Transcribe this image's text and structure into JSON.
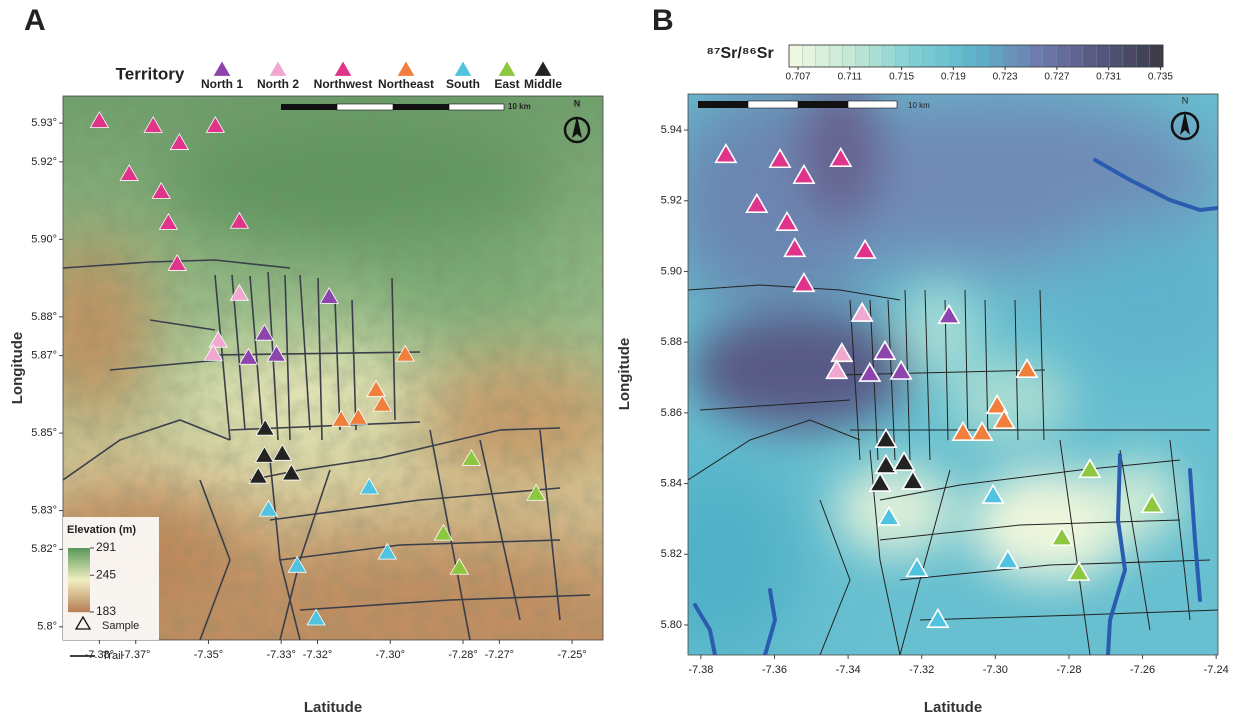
{
  "chart_data": [
    {
      "type": "scatter",
      "panel": "A",
      "legend_title": "Territory",
      "scale_bar": "10 km",
      "north": "N",
      "x_label": "Latitude",
      "y_label": "Longitude",
      "xlim": [
        -7.39,
        -7.2415
      ],
      "ylim": [
        5.7966,
        5.937
      ],
      "xticks": [
        {
          "value": -7.38,
          "label": "-7.38°"
        },
        {
          "value": -7.37,
          "label": "-7.37°"
        },
        {
          "value": -7.35,
          "label": "-7.35°"
        },
        {
          "value": -7.33,
          "label": "-7.33°"
        },
        {
          "value": -7.32,
          "label": "-7.32°"
        },
        {
          "value": -7.3,
          "label": "-7.30°"
        },
        {
          "value": -7.28,
          "label": "-7.28°"
        },
        {
          "value": -7.27,
          "label": "-7.27°"
        },
        {
          "value": -7.25,
          "label": "-7.25°"
        }
      ],
      "yticks": [
        {
          "value": 5.93,
          "label": "5.93°"
        },
        {
          "value": 5.92,
          "label": "5.92°"
        },
        {
          "value": 5.9,
          "label": "5.90°"
        },
        {
          "value": 5.88,
          "label": "5.88°"
        },
        {
          "value": 5.87,
          "label": "5.87°"
        },
        {
          "value": 5.85,
          "label": "5.85°"
        },
        {
          "value": 5.83,
          "label": "5.83°"
        },
        {
          "value": 5.82,
          "label": "5.82°"
        },
        {
          "value": 5.8,
          "label": "5.8°"
        }
      ],
      "elevation_scale": {
        "title": "Elevation (m)",
        "ticks": [
          291,
          245,
          183
        ],
        "colors": [
          "#5e9a5c",
          "#f2eec2",
          "#b8825a"
        ]
      },
      "legend_extra": [
        "Sample",
        "Trail"
      ],
      "series": [
        {
          "name": "North 1",
          "color": "#8e44ad",
          "x": [
            -7.3168,
            -7.3346,
            -7.339,
            -7.3313
          ],
          "y": [
            5.8851,
            5.8756,
            5.8694,
            5.8702
          ]
        },
        {
          "name": "North 2",
          "color": "#f0a8d0",
          "x": [
            -7.3415,
            -7.3473,
            -7.3487
          ],
          "y": [
            5.8859,
            5.8738,
            5.8704
          ]
        },
        {
          "name": "Northwest",
          "color": "#e0338a",
          "x": [
            -7.38,
            -7.3652,
            -7.358,
            -7.3481,
            -7.3718,
            -7.363,
            -7.361,
            -7.3415,
            -7.3586
          ],
          "y": [
            5.9305,
            5.9292,
            5.9248,
            5.9292,
            5.9168,
            5.9122,
            5.9042,
            5.9045,
            5.8936
          ]
        },
        {
          "name": "Northeast",
          "color": "#f07f3c",
          "x": [
            -7.2959,
            -7.3039,
            -7.3022,
            -7.3135,
            -7.3088
          ],
          "y": [
            5.8702,
            5.8611,
            5.8573,
            5.8534,
            5.8539
          ]
        },
        {
          "name": "South",
          "color": "#4fc3e0",
          "x": [
            -7.3335,
            -7.3058,
            -7.3008,
            -7.3256,
            -7.3204
          ],
          "y": [
            5.8302,
            5.8359,
            5.8191,
            5.8157,
            5.8021
          ]
        },
        {
          "name": "East",
          "color": "#8dc63f",
          "x": [
            -7.2777,
            -7.2599,
            -7.2854,
            -7.281
          ],
          "y": [
            5.8433,
            5.8343,
            5.824,
            5.8152
          ]
        },
        {
          "name": "Middle",
          "color": "#222222",
          "x": [
            -7.3344,
            -7.3346,
            -7.3297,
            -7.3363,
            -7.3272
          ],
          "y": [
            5.8511,
            5.8441,
            5.8446,
            5.8387,
            5.8395
          ]
        }
      ]
    },
    {
      "type": "scatter",
      "panel": "B",
      "scale_bar": "10 km",
      "north": "N",
      "x_label": "Latitude",
      "y_label": "Longitude",
      "xlim": [
        -7.3835,
        -7.2395
      ],
      "ylim": [
        5.7915,
        5.9502
      ],
      "xticks": [
        -7.38,
        -7.36,
        -7.34,
        -7.32,
        {
          "value": -7.3,
          "label": "-7.30"
        },
        -7.28,
        -7.26,
        -7.24
      ],
      "yticks": [
        {
          "value": 5.8,
          "label": "5.80"
        },
        5.82,
        5.84,
        5.86,
        5.88,
        {
          "value": 5.9,
          "label": "5.90"
        },
        5.92,
        5.94
      ],
      "colorbar": {
        "title": "⁸⁷Sr/⁸⁶Sr",
        "lim": [
          0.7063,
          0.7352
        ],
        "ticks": [
          0.707,
          0.711,
          0.715,
          0.719,
          0.723,
          0.727,
          0.731,
          0.735
        ],
        "colors": [
          "#f3f9e2",
          "#c4e8d4",
          "#7fcfd4",
          "#5db3cc",
          "#6f7bad",
          "#55557e",
          "#3b3b45"
        ]
      },
      "series": [
        {
          "name": "North 1",
          "color": "#8e44ad",
          "x": [
            -7.3126,
            -7.33,
            -7.3341,
            -7.3256
          ],
          "y": [
            5.8874,
            5.8772,
            5.871,
            5.8716
          ]
        },
        {
          "name": "North 2",
          "color": "#f0a8d0",
          "x": [
            -7.3362,
            -7.3417,
            -7.3431
          ],
          "y": [
            5.888,
            5.8766,
            5.8718
          ]
        },
        {
          "name": "Northwest",
          "color": "#e0338a",
          "x": [
            -7.3732,
            -7.3585,
            -7.352,
            -7.342,
            -7.3648,
            -7.3566,
            -7.3545,
            -7.3354,
            -7.352
          ],
          "y": [
            5.9329,
            5.9315,
            5.927,
            5.9318,
            5.9188,
            5.9137,
            5.9063,
            5.9058,
            5.8964
          ]
        },
        {
          "name": "Northeast",
          "color": "#f07f3c",
          "x": [
            -7.2914,
            -7.2995,
            -7.2976,
            -7.3088,
            -7.3036
          ],
          "y": [
            5.8721,
            5.8619,
            5.8577,
            5.8543,
            5.8543
          ]
        },
        {
          "name": "South",
          "color": "#4fc3e0",
          "x": [
            -7.3289,
            -7.3006,
            -7.2966,
            -7.3213,
            -7.3156
          ],
          "y": [
            5.8303,
            5.8365,
            5.8181,
            5.8158,
            5.8014
          ]
        },
        {
          "name": "East",
          "color": "#8dc63f",
          "x": [
            -7.2743,
            -7.2574,
            -7.2819,
            -7.2773
          ],
          "y": [
            5.8438,
            5.8339,
            5.8246,
            5.8147
          ]
        },
        {
          "name": "Middle",
          "color": "#222222",
          "x": [
            -7.3297,
            -7.3297,
            -7.3248,
            -7.3313,
            -7.3224
          ],
          "y": [
            5.8523,
            5.845,
            5.8458,
            5.8399,
            5.8405
          ]
        }
      ]
    }
  ]
}
